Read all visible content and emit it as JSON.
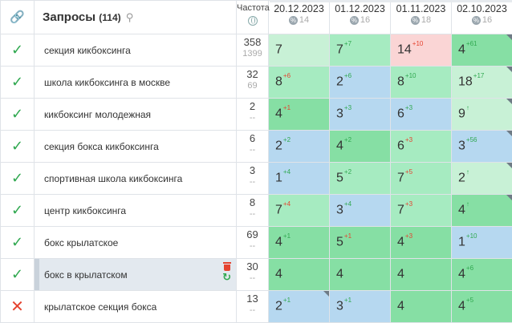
{
  "header": {
    "query_title": "Запросы",
    "query_count": "(114)",
    "freq_label": "Частота",
    "dates": [
      {
        "date": "20.12.2023",
        "sub": "14"
      },
      {
        "date": "01.12.2023",
        "sub": "16"
      },
      {
        "date": "01.11.2023",
        "sub": "18"
      },
      {
        "date": "02.10.2023",
        "sub": "16"
      }
    ]
  },
  "rows": [
    {
      "status": "ok",
      "query": "секция кикбоксинга",
      "freq": "358",
      "freq2": "1399",
      "cells": [
        {
          "v": "7",
          "d": ""
        },
        {
          "v": "7",
          "d": "+7"
        },
        {
          "v": "14",
          "d": "+10"
        },
        {
          "v": "4",
          "d": "+61"
        }
      ]
    },
    {
      "status": "ok",
      "query": "школа кикбоксинга в москве",
      "freq": "32",
      "freq2": "69",
      "cells": [
        {
          "v": "8",
          "d": "+6"
        },
        {
          "v": "2",
          "d": "+6"
        },
        {
          "v": "8",
          "d": "+10"
        },
        {
          "v": "18",
          "d": "+17"
        }
      ]
    },
    {
      "status": "ok",
      "query": "кикбоксинг молодежная",
      "freq": "2",
      "freq2": "--",
      "cells": [
        {
          "v": "4",
          "d": "+1"
        },
        {
          "v": "3",
          "d": "+3"
        },
        {
          "v": "6",
          "d": "+3"
        },
        {
          "v": "9",
          "d": "↑"
        }
      ]
    },
    {
      "status": "ok",
      "query": "секция бокса кикбоксинга",
      "freq": "6",
      "freq2": "--",
      "cells": [
        {
          "v": "2",
          "d": "+2"
        },
        {
          "v": "4",
          "d": "+2"
        },
        {
          "v": "6",
          "d": "+3"
        },
        {
          "v": "3",
          "d": "+56"
        }
      ]
    },
    {
      "status": "ok",
      "query": "спортивная школа кикбоксинга",
      "freq": "3",
      "freq2": "--",
      "cells": [
        {
          "v": "1",
          "d": "+4"
        },
        {
          "v": "5",
          "d": "+2"
        },
        {
          "v": "7",
          "d": "+5"
        },
        {
          "v": "2",
          "d": "↑"
        }
      ]
    },
    {
      "status": "ok",
      "query": "центр кикбоксинга",
      "freq": "8",
      "freq2": "--",
      "cells": [
        {
          "v": "7",
          "d": "+4"
        },
        {
          "v": "3",
          "d": "+4"
        },
        {
          "v": "7",
          "d": "+3"
        },
        {
          "v": "4",
          "d": "↑"
        }
      ]
    },
    {
      "status": "ok",
      "query": "бокс крылатское",
      "freq": "69",
      "freq2": "--",
      "cells": [
        {
          "v": "4",
          "d": "+1"
        },
        {
          "v": "5",
          "d": "+1"
        },
        {
          "v": "4",
          "d": "+3"
        },
        {
          "v": "1",
          "d": "+10"
        }
      ]
    },
    {
      "status": "ok",
      "query": "бокс в крылатском",
      "freq": "30",
      "freq2": "--",
      "cells": [
        {
          "v": "4",
          "d": ""
        },
        {
          "v": "4",
          "d": ""
        },
        {
          "v": "4",
          "d": ""
        },
        {
          "v": "4",
          "d": "+6"
        }
      ]
    },
    {
      "status": "fail",
      "query": "крылатское секция бокса",
      "freq": "13",
      "freq2": "--",
      "cells": [
        {
          "v": "2",
          "d": "+1"
        },
        {
          "v": "3",
          "d": "+1"
        },
        {
          "v": "4",
          "d": ""
        },
        {
          "v": "4",
          "d": "+5"
        }
      ]
    }
  ],
  "colors": {
    "ok": "#2fa84f",
    "fail": "#e5432f",
    "green": "#86dfa4",
    "blue": "#b6d8f0",
    "pink": "#fad5d5"
  }
}
